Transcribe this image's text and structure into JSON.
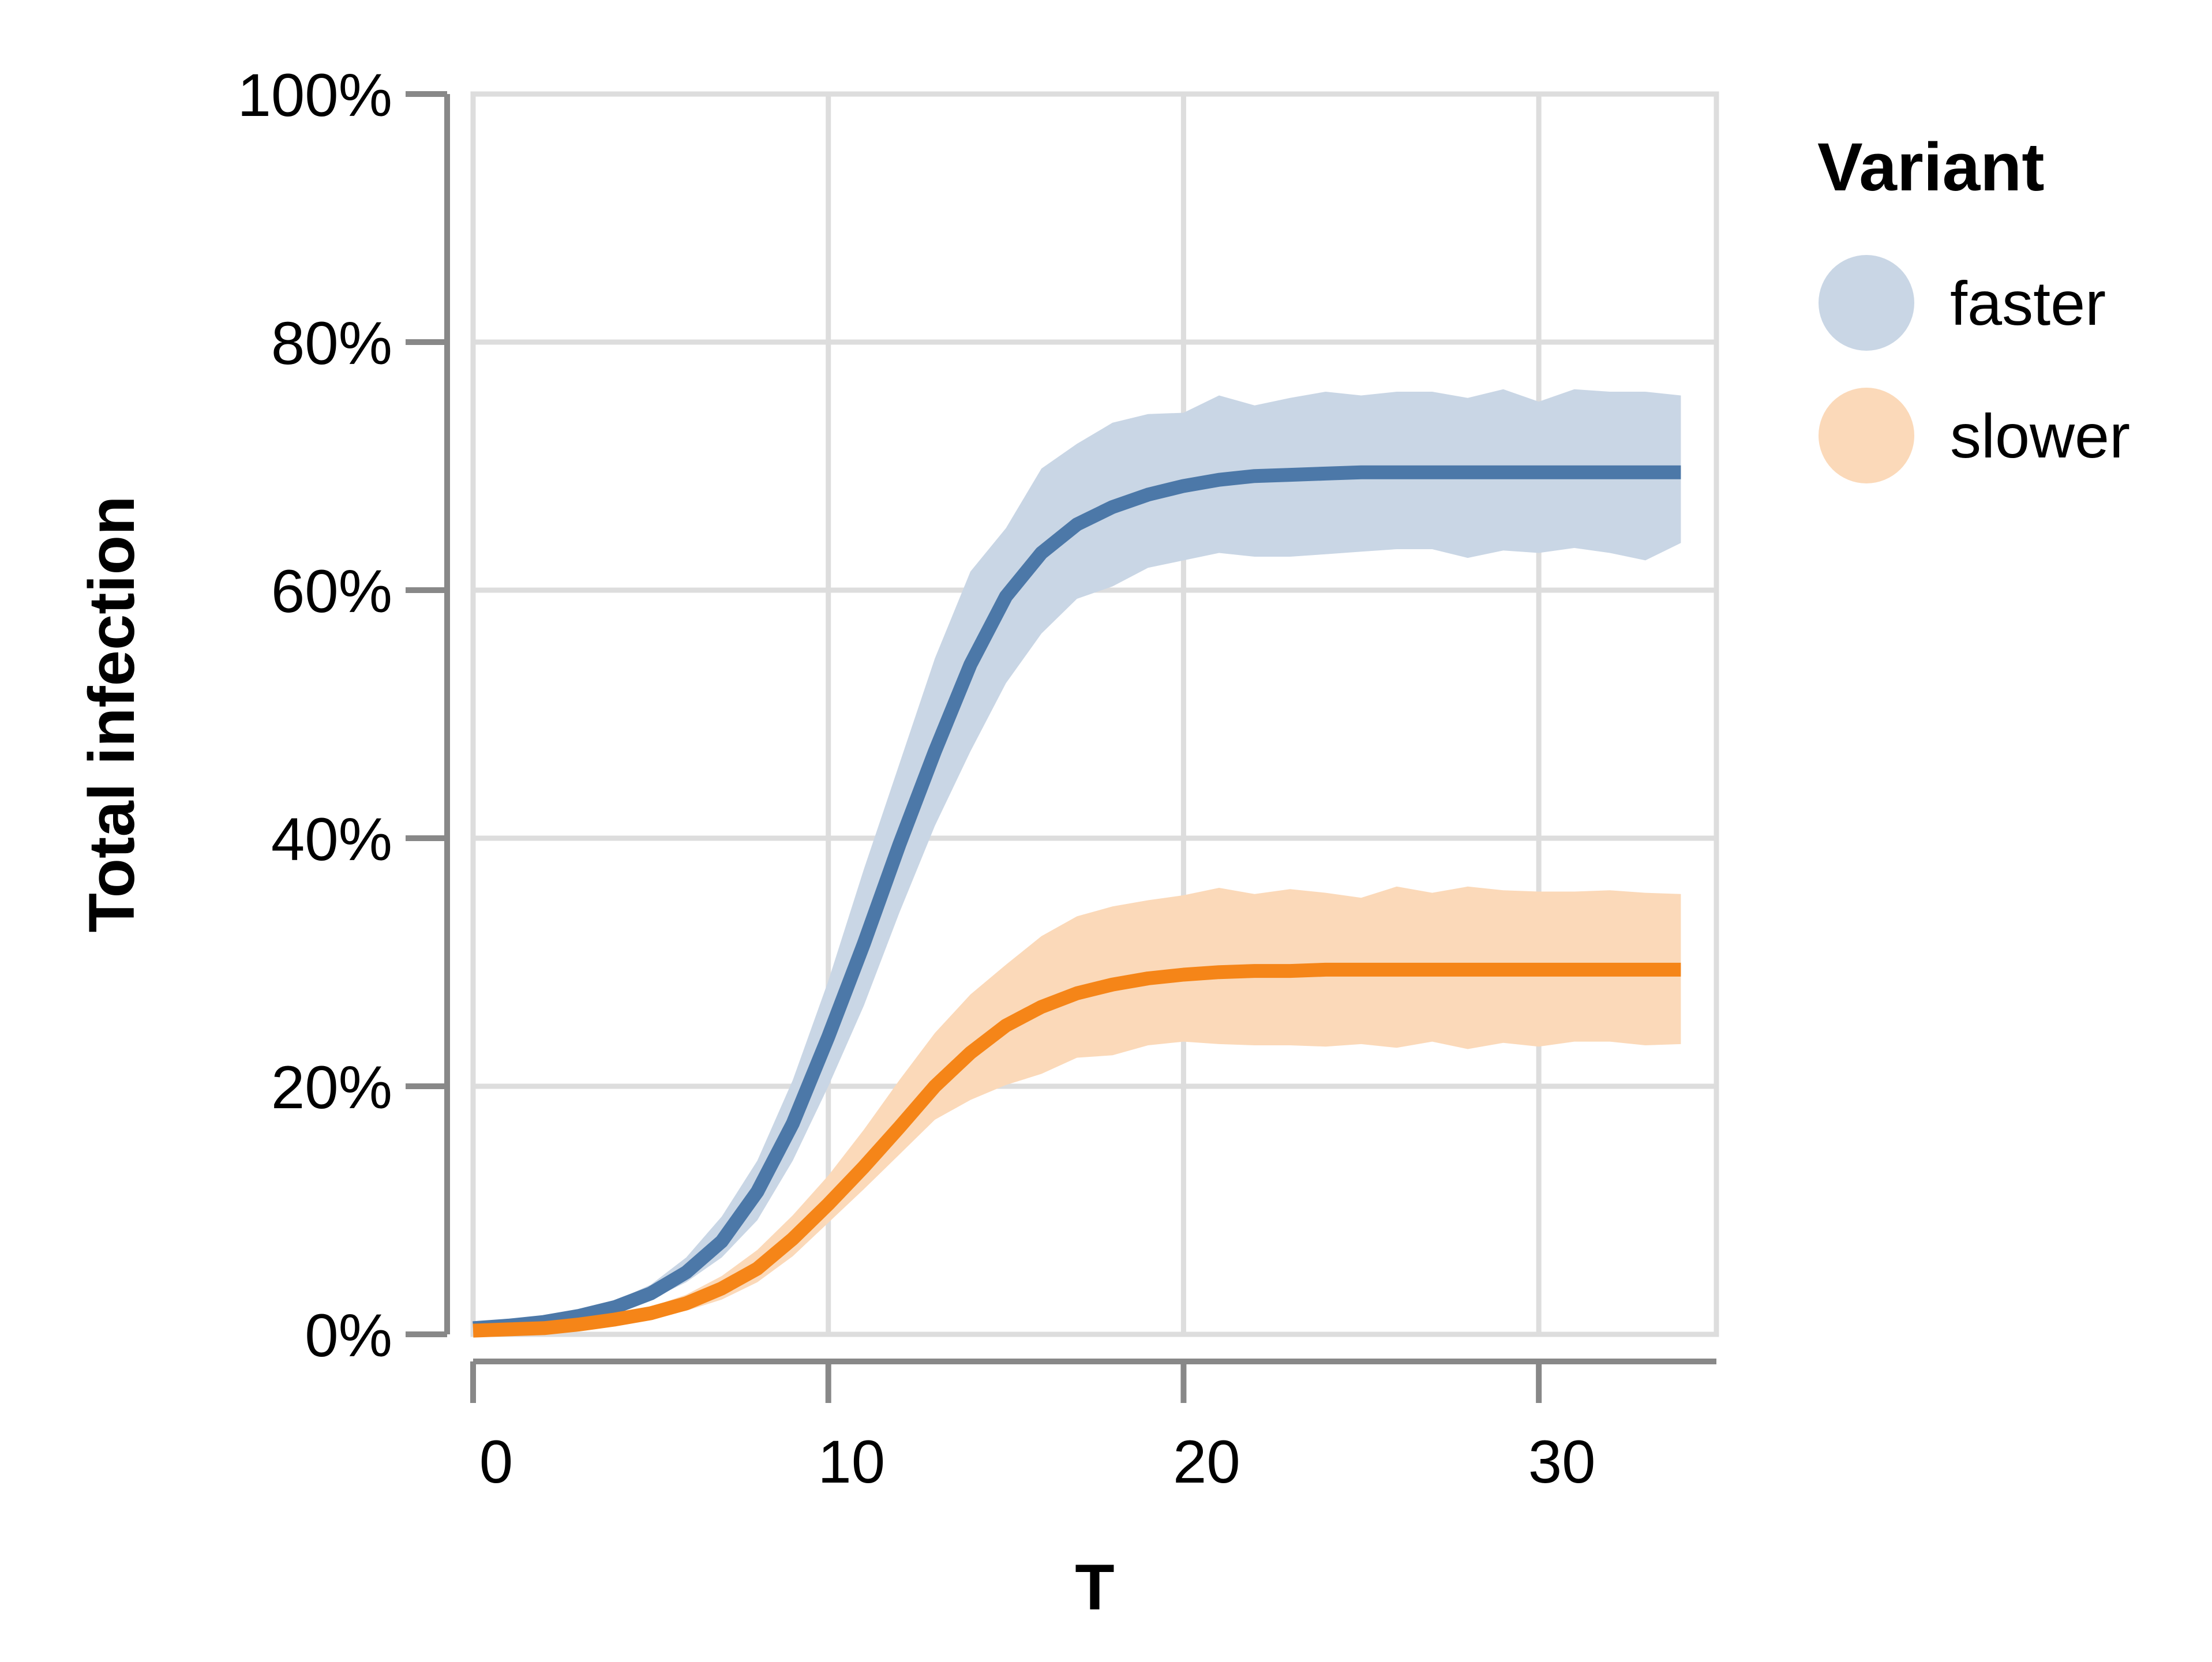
{
  "chart_data": {
    "type": "line",
    "xlabel": "T",
    "ylabel": "Total infection",
    "xlim": [
      0,
      35
    ],
    "ylim": [
      0,
      1
    ],
    "x_ticks": [
      0,
      10,
      20,
      30
    ],
    "x_tick_labels": [
      "0",
      "10",
      "20",
      "30"
    ],
    "y_ticks": [
      0,
      0.2,
      0.4,
      0.6,
      0.8,
      1.0
    ],
    "y_tick_labels": [
      "0%",
      "20%",
      "40%",
      "60%",
      "80%",
      "100%"
    ],
    "grid": true,
    "legend": {
      "title": "Variant",
      "position": "right"
    },
    "x": [
      0,
      1,
      2,
      3,
      4,
      5,
      6,
      7,
      8,
      9,
      10,
      11,
      12,
      13,
      14,
      15,
      16,
      17,
      18,
      19,
      20,
      21,
      22,
      23,
      24,
      25,
      26,
      27,
      28,
      29,
      30,
      31,
      32,
      33,
      34
    ],
    "series": [
      {
        "name": "faster",
        "color": "#4c78a8",
        "band_color": "#c9d6e5",
        "values": [
          0.005,
          0.007,
          0.01,
          0.015,
          0.022,
          0.033,
          0.05,
          0.075,
          0.115,
          0.17,
          0.24,
          0.315,
          0.395,
          0.47,
          0.54,
          0.595,
          0.63,
          0.653,
          0.667,
          0.677,
          0.684,
          0.689,
          0.692,
          0.693,
          0.694,
          0.695,
          0.695,
          0.695,
          0.695,
          0.695,
          0.695,
          0.695,
          0.695,
          0.695,
          0.695
        ],
        "lower": [
          0.003,
          0.005,
          0.008,
          0.012,
          0.018,
          0.028,
          0.042,
          0.062,
          0.092,
          0.14,
          0.2,
          0.265,
          0.34,
          0.41,
          0.47,
          0.525,
          0.565,
          0.593,
          0.603,
          0.618,
          0.624,
          0.63,
          0.627,
          0.627,
          0.629,
          0.631,
          0.633,
          0.633,
          0.626,
          0.632,
          0.63,
          0.634,
          0.63,
          0.624,
          0.638
        ],
        "upper": [
          0.007,
          0.009,
          0.012,
          0.018,
          0.027,
          0.04,
          0.062,
          0.095,
          0.14,
          0.205,
          0.285,
          0.375,
          0.46,
          0.545,
          0.615,
          0.65,
          0.698,
          0.718,
          0.735,
          0.742,
          0.743,
          0.757,
          0.749,
          0.755,
          0.76,
          0.757,
          0.76,
          0.76,
          0.755,
          0.762,
          0.752,
          0.762,
          0.76,
          0.76,
          0.757
        ]
      },
      {
        "name": "slower",
        "color": "#f58518",
        "band_color": "#fbd9b9",
        "values": [
          0.003,
          0.004,
          0.005,
          0.008,
          0.012,
          0.017,
          0.025,
          0.037,
          0.053,
          0.077,
          0.105,
          0.135,
          0.167,
          0.2,
          0.227,
          0.249,
          0.264,
          0.275,
          0.282,
          0.287,
          0.29,
          0.292,
          0.293,
          0.293,
          0.294,
          0.294,
          0.294,
          0.294,
          0.294,
          0.294,
          0.294,
          0.294,
          0.294,
          0.294,
          0.294
        ],
        "lower": [
          0.002,
          0.003,
          0.004,
          0.006,
          0.009,
          0.013,
          0.019,
          0.028,
          0.042,
          0.063,
          0.09,
          0.117,
          0.145,
          0.173,
          0.189,
          0.201,
          0.21,
          0.223,
          0.225,
          0.233,
          0.236,
          0.234,
          0.233,
          0.233,
          0.232,
          0.234,
          0.231,
          0.236,
          0.23,
          0.235,
          0.232,
          0.236,
          0.236,
          0.233,
          0.234
        ],
        "upper": [
          0.004,
          0.005,
          0.007,
          0.01,
          0.015,
          0.022,
          0.032,
          0.047,
          0.068,
          0.096,
          0.128,
          0.165,
          0.205,
          0.243,
          0.274,
          0.298,
          0.321,
          0.337,
          0.345,
          0.35,
          0.354,
          0.36,
          0.355,
          0.359,
          0.356,
          0.352,
          0.361,
          0.356,
          0.361,
          0.358,
          0.357,
          0.357,
          0.358,
          0.356,
          0.355
        ]
      }
    ]
  }
}
